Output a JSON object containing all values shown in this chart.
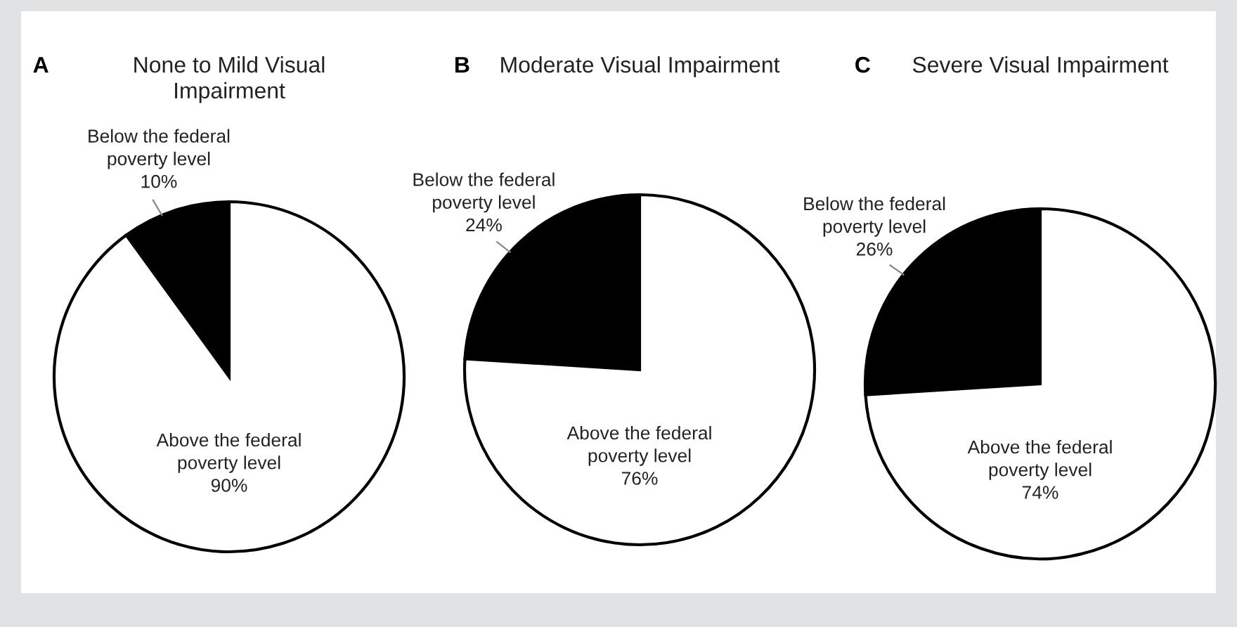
{
  "chart_data": [
    {
      "type": "pie",
      "title": "None to Mild Visual\nImpairment",
      "annotations": [
        "A"
      ],
      "categories": [
        "Below the federal\npoverty level",
        "Above the federal\npoverty level"
      ],
      "values": [
        10,
        90
      ],
      "value_labels": [
        "10%",
        "90%"
      ],
      "colors": [
        "#000000",
        "#ffffff"
      ]
    },
    {
      "type": "pie",
      "title": "Moderate Visual Impairment",
      "annotations": [
        "B"
      ],
      "categories": [
        "Below the federal\npoverty level",
        "Above the federal\npoverty level"
      ],
      "values": [
        24,
        76
      ],
      "value_labels": [
        "24%",
        "76%"
      ],
      "colors": [
        "#000000",
        "#ffffff"
      ]
    },
    {
      "type": "pie",
      "title": "Severe Visual Impairment",
      "annotations": [
        "C"
      ],
      "categories": [
        "Below the federal\npoverty level",
        "Above the federal\npoverty level"
      ],
      "values": [
        26,
        74
      ],
      "value_labels": [
        "26%",
        "74%"
      ],
      "colors": [
        "#000000",
        "#ffffff"
      ]
    }
  ]
}
